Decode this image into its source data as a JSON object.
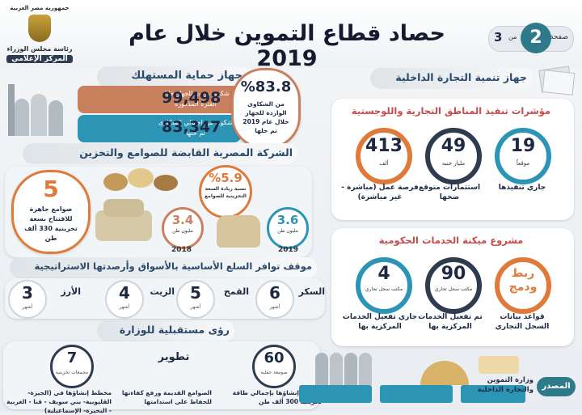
{
  "header": {
    "title": "حصاد قطاع التموين خلال عام 2019",
    "page_word": "صفحة",
    "page_current": "2",
    "page_of": "من",
    "page_total": "3",
    "logo_lines": [
      "جمهورية مصر العربية",
      "رئاسة مجلس الوزراء",
      "المركز الإعلامي"
    ]
  },
  "consumer": {
    "title": "جهاز حماية المستهلك",
    "percent": "%83.8",
    "percent_desc": "من الشكاوى الواردة للجهاز خلال عام 2019 تم حلها",
    "rows": [
      {
        "value": "99,498",
        "label": "شكوى وردت للجهاز خلال الفترة المذكورة",
        "color": "#c9805f"
      },
      {
        "value": "83,347",
        "label": "شكوى من إجمالي الشكاوى تم حلها",
        "color": "#2c95b6"
      }
    ]
  },
  "silos": {
    "title": "الشركة المصرية القابضة للصوامع والتخزين",
    "silos_count": "5",
    "silos_desc": "صوامع جاهزة للافتتاح بسعة تخزينية 330 ألف طن",
    "increase": "%5.9",
    "increase_desc": "نسبة زيادة السعة التخزينية للصوامع",
    "y2018_value": "3.4",
    "y2018_unit": "مليون طن",
    "y2018_year": "2018",
    "y2019_value": "3.6",
    "y2019_unit": "مليون طن",
    "y2019_year": "2019"
  },
  "commodities": {
    "title": "موقف توافر السلع الأساسية بالأسواق وأرصدتها الاستراتيجية",
    "unit": "أشهر",
    "items": [
      {
        "name": "السكر",
        "value": "6"
      },
      {
        "name": "القمح",
        "value": "5"
      },
      {
        "name": "الزيت",
        "value": "4"
      },
      {
        "name": "الأرز",
        "value": "3"
      }
    ]
  },
  "future": {
    "title": "رؤى مستقبلية للوزارة",
    "items": [
      {
        "value": "60",
        "sub": "صومعة حقلية",
        "desc": "مخطط إنشاؤها بإجمالي طاقة تخزينية 300 ألف طن"
      },
      {
        "value": "تطوير",
        "sub": "",
        "desc": "الصوامع القديمة ورفع كفاءتها للحفاظ على استدامتها"
      },
      {
        "value": "7",
        "sub": "مجمعات تخزينية",
        "desc": "مخطط إنشاؤها في (الجيزة- القليوبية- بني سويف - قنا - الغربية - البحيرة- الإسماعيلية)"
      }
    ]
  },
  "trade": {
    "title": "جهاز تنمية التجارة الداخلية",
    "logistics_title": "مؤشرات تنفيذ المناطق التجارية واللوجستية",
    "stats": [
      {
        "value": "19",
        "unit": "موقعاً",
        "label": "جاري تنفيذها",
        "color": "#2c95b6"
      },
      {
        "value": "49",
        "unit": "مليار جنيه",
        "label": "استثمارات متوقع ضخها",
        "color": "#2f3b4f"
      },
      {
        "value": "413",
        "unit": "ألف",
        "label": "فرصة عمل (مباشرة - غير مباشرة)",
        "color": "#e07a3a"
      }
    ],
    "digital_title": "مشروع ميكنة الخدمات الحكومية",
    "digital": [
      {
        "value": "ربط ودمج",
        "unit": "",
        "label": "قواعد بيانات السجل التجاري",
        "color": "#e07a3a"
      },
      {
        "value": "90",
        "unit": "مكتب سجل تجاري",
        "label": "تم تفعيل الخدمات المركزية بها",
        "color": "#2f3b4f"
      },
      {
        "value": "4",
        "unit": "مكتب سجل تجاري",
        "label": "جاري تفعيل الخدمات المركزية بها",
        "color": "#2c95b6"
      }
    ]
  },
  "source": {
    "label": "المصدر",
    "text": "وزارة التموين والتجارة الداخلية"
  }
}
